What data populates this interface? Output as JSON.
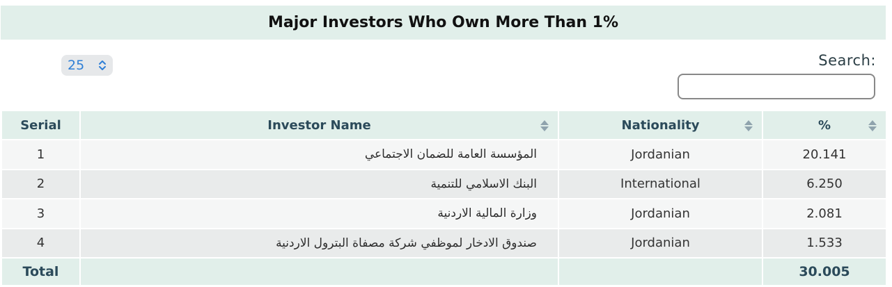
{
  "title": "Major Investors Who Own More Than 1%",
  "length_menu": {
    "value": "25"
  },
  "search": {
    "label": "Search:",
    "value": ""
  },
  "table": {
    "headers": [
      "Serial",
      "Investor Name",
      "Nationality",
      "%"
    ],
    "rows": [
      {
        "serial": "1",
        "name": "المؤسسة العامة للضمان الاجتماعي",
        "nationality": "Jordanian",
        "percent": "20.141"
      },
      {
        "serial": "2",
        "name": "البنك الاسلامي للتنمية",
        "nationality": "International",
        "percent": "6.250"
      },
      {
        "serial": "3",
        "name": "وزارة المالية الاردنية",
        "nationality": "Jordanian",
        "percent": "2.081"
      },
      {
        "serial": "4",
        "name": "صندوق الادخار لموظفي شركة مصفاة البترول الاردنية",
        "nationality": "Jordanian",
        "percent": "1.533"
      }
    ],
    "footer": {
      "label": "Total",
      "value": "30.005"
    }
  },
  "colors": {
    "header_bg": "#e1efea",
    "row_odd": "#f5f6f6",
    "row_even": "#e9ebeb",
    "header_text": "#2b4a5a",
    "select_value": "#2f7fd6"
  },
  "icons": {
    "sort": "sort-arrows-icon",
    "select": "chevron-updown-icon"
  }
}
